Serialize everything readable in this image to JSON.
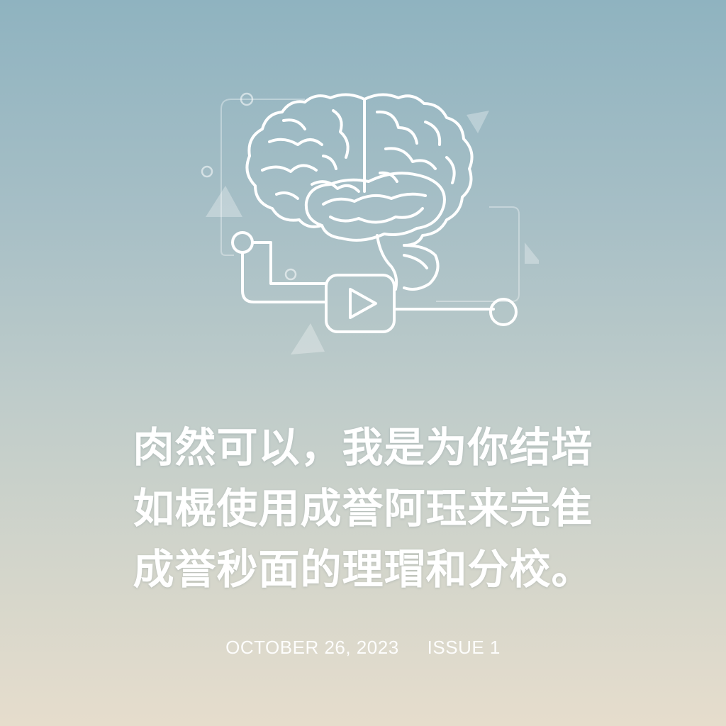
{
  "illustration": {
    "icon": "brain-circuit-play-icon",
    "stroke_color": "#ffffff"
  },
  "headline": {
    "lines": [
      "肉然可以，我是为你结培",
      "如榥使用成誉阿珏来完隹",
      "成誉秒面的理瑁和分校。"
    ]
  },
  "meta": {
    "date": "OCTOBER 26, 2023",
    "issue": "ISSUE 1"
  },
  "colors": {
    "background_top": "#8fb3c0",
    "background_bottom": "#e6ddcc",
    "text": "#ffffff"
  }
}
